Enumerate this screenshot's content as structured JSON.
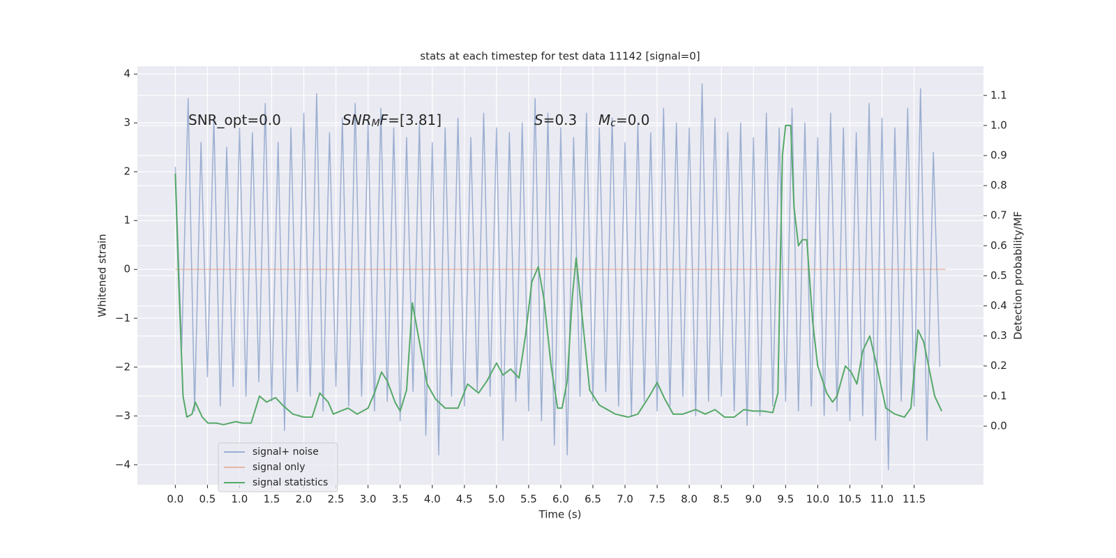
{
  "chart_data": {
    "type": "line",
    "title": "stats at each timestep for test data 11142 [signal=0]",
    "xlabel": "Time (s)",
    "ylabel": "Whitened strain",
    "y2label": "Detection probability/MF",
    "xlim": [
      -0.59,
      12.58
    ],
    "ylim": [
      -4.41,
      4.16
    ],
    "y2lim": [
      -0.195,
      1.197
    ],
    "xticks": [
      {
        "value": 0,
        "label": "0.0"
      },
      0.5,
      {
        "value": 1,
        "label": "1.0"
      },
      1.5,
      {
        "value": 2,
        "label": "2.0"
      },
      2.5,
      {
        "value": 3,
        "label": "3.0"
      },
      3.5,
      {
        "value": 4,
        "label": "4.0"
      },
      4.5,
      {
        "value": 5,
        "label": "5.0"
      },
      5.5,
      {
        "value": 6,
        "label": "6.0"
      },
      6.5,
      {
        "value": 7,
        "label": "7.0"
      },
      7.5,
      {
        "value": 8,
        "label": "8.0"
      },
      8.5,
      {
        "value": 9,
        "label": "9.0"
      },
      9.5,
      {
        "value": 10,
        "label": "10.0"
      },
      10.5,
      {
        "value": 11,
        "label": "11.0"
      },
      11.5
    ],
    "yticks": [
      {
        "value": -4,
        "label": "−4"
      },
      {
        "value": -3,
        "label": "−3"
      },
      {
        "value": -2,
        "label": "−2"
      },
      {
        "value": -1,
        "label": "−1"
      },
      0,
      1,
      2,
      3,
      4
    ],
    "y2ticks": [
      {
        "value": 0,
        "label": "0.0"
      },
      0.1,
      0.2,
      0.3,
      0.4,
      0.5,
      0.6,
      0.7,
      0.8,
      0.9,
      {
        "value": 1,
        "label": "1.0"
      },
      1.1
    ],
    "grid": true,
    "legend": "lower left",
    "series": [
      {
        "name": "signal+ noise",
        "color": "#4c72b0",
        "alpha": 0.5,
        "x": [
          0.0,
          0.1,
          0.2,
          0.3,
          0.4,
          0.5,
          0.6,
          0.7,
          0.8,
          0.9,
          1.0,
          1.1,
          1.2,
          1.3,
          1.4,
          1.5,
          1.6,
          1.7,
          1.8,
          1.9,
          2.0,
          2.1,
          2.2,
          2.3,
          2.4,
          2.5,
          2.6,
          2.7,
          2.8,
          2.9,
          3.0,
          3.1,
          3.2,
          3.3,
          3.4,
          3.5,
          3.6,
          3.7,
          3.8,
          3.9,
          4.0,
          4.1,
          4.2,
          4.3,
          4.4,
          4.5,
          4.6,
          4.7,
          4.8,
          4.9,
          5.0,
          5.1,
          5.2,
          5.3,
          5.4,
          5.5,
          5.6,
          5.7,
          5.8,
          5.9,
          6.0,
          6.1,
          6.2,
          6.3,
          6.4,
          6.5,
          6.6,
          6.7,
          6.8,
          6.9,
          7.0,
          7.1,
          7.2,
          7.3,
          7.4,
          7.5,
          7.6,
          7.7,
          7.8,
          7.9,
          8.0,
          8.1,
          8.2,
          8.3,
          8.4,
          8.5,
          8.6,
          8.7,
          8.8,
          8.9,
          9.0,
          9.1,
          9.2,
          9.3,
          9.4,
          9.5,
          9.6,
          9.7,
          9.8,
          9.9,
          10.0,
          10.1,
          10.2,
          10.3,
          10.4,
          10.5,
          10.6,
          10.7,
          10.8,
          10.9,
          11.0,
          11.1,
          11.2,
          11.3,
          11.4,
          11.5,
          11.6,
          11.7,
          11.8,
          11.9
        ],
        "values": [
          2.1,
          -1.6,
          3.5,
          -2.9,
          2.6,
          -2.2,
          3.1,
          -2.8,
          2.5,
          -2.4,
          2.9,
          -2.6,
          2.8,
          -2.3,
          3.4,
          -2.7,
          2.6,
          -3.3,
          2.9,
          -2.5,
          3.2,
          -2.6,
          3.6,
          -2.9,
          2.8,
          -2.4,
          3.1,
          -2.8,
          3.4,
          -2.6,
          3.0,
          -2.9,
          3.3,
          -2.7,
          2.9,
          -3.1,
          2.7,
          -2.5,
          3.0,
          -3.4,
          2.6,
          -3.8,
          2.9,
          -2.6,
          3.1,
          -2.8,
          2.7,
          -2.5,
          3.2,
          -2.6,
          2.9,
          -3.5,
          2.8,
          -2.7,
          3.0,
          -2.9,
          3.5,
          -3.1,
          3.2,
          -3.6,
          2.9,
          -3.8,
          2.7,
          -2.6,
          3.2,
          -2.7,
          2.9,
          -2.5,
          3.1,
          -2.8,
          2.6,
          -3.0,
          3.0,
          -2.7,
          2.8,
          -2.9,
          3.3,
          -2.8,
          3.0,
          -2.6,
          2.9,
          -3.0,
          3.8,
          -2.7,
          3.1,
          -2.6,
          2.8,
          -2.9,
          3.0,
          -3.2,
          2.7,
          -3.0,
          3.2,
          -2.8,
          2.9,
          -2.7,
          3.3,
          -2.9,
          3.0,
          -2.8,
          2.7,
          -3.0,
          3.2,
          -2.9,
          2.9,
          -3.1,
          2.8,
          -3.0,
          3.4,
          -3.5,
          3.1,
          -4.1,
          2.9,
          -2.7,
          3.3,
          -2.8,
          3.7,
          -3.5,
          2.4,
          -2.0
        ]
      },
      {
        "name": "signal only",
        "color": "#dd8452",
        "alpha": 0.5,
        "x": [
          0.0,
          11.99
        ],
        "values": [
          0,
          0
        ]
      },
      {
        "name": "signal statistics",
        "color": "#55a868",
        "alpha": 1,
        "axis": "y2",
        "x": [
          0.0,
          0.05,
          0.12,
          0.18,
          0.26,
          0.31,
          0.42,
          0.51,
          0.64,
          0.75,
          0.94,
          1.05,
          1.18,
          1.31,
          1.42,
          1.56,
          1.67,
          1.83,
          2.0,
          2.13,
          2.25,
          2.38,
          2.46,
          2.57,
          2.69,
          2.83,
          3.0,
          3.1,
          3.21,
          3.3,
          3.42,
          3.5,
          3.6,
          3.69,
          3.8,
          3.92,
          4.05,
          4.2,
          4.4,
          4.55,
          4.72,
          4.85,
          5.0,
          5.1,
          5.22,
          5.35,
          5.45,
          5.55,
          5.65,
          5.74,
          5.85,
          5.95,
          6.02,
          6.1,
          6.18,
          6.24,
          6.35,
          6.45,
          6.6,
          6.85,
          7.05,
          7.2,
          7.38,
          7.5,
          7.62,
          7.75,
          7.9,
          8.1,
          8.25,
          8.4,
          8.55,
          8.7,
          8.85,
          9.0,
          9.15,
          9.3,
          9.38,
          9.45,
          9.5,
          9.58,
          9.63,
          9.7,
          9.76,
          9.83,
          9.92,
          10.0,
          10.14,
          10.23,
          10.3,
          10.43,
          10.52,
          10.61,
          10.7,
          10.81,
          10.92,
          11.06,
          11.2,
          11.35,
          11.45,
          11.56,
          11.65,
          11.82,
          11.93
        ],
        "values": [
          0.84,
          0.5,
          0.1,
          0.03,
          0.04,
          0.08,
          0.03,
          0.01,
          0.01,
          0.005,
          0.015,
          0.01,
          0.01,
          0.1,
          0.08,
          0.095,
          0.07,
          0.04,
          0.03,
          0.03,
          0.11,
          0.08,
          0.04,
          0.05,
          0.06,
          0.04,
          0.06,
          0.11,
          0.18,
          0.15,
          0.08,
          0.05,
          0.12,
          0.41,
          0.28,
          0.14,
          0.09,
          0.06,
          0.06,
          0.14,
          0.11,
          0.15,
          0.21,
          0.17,
          0.19,
          0.16,
          0.3,
          0.48,
          0.53,
          0.42,
          0.2,
          0.06,
          0.06,
          0.15,
          0.43,
          0.56,
          0.33,
          0.12,
          0.07,
          0.04,
          0.03,
          0.04,
          0.1,
          0.145,
          0.09,
          0.04,
          0.04,
          0.055,
          0.04,
          0.055,
          0.03,
          0.03,
          0.055,
          0.05,
          0.05,
          0.045,
          0.11,
          0.9,
          1.0,
          1.0,
          0.73,
          0.6,
          0.62,
          0.62,
          0.35,
          0.2,
          0.11,
          0.08,
          0.1,
          0.2,
          0.18,
          0.14,
          0.25,
          0.3,
          0.2,
          0.06,
          0.04,
          0.03,
          0.06,
          0.32,
          0.28,
          0.1,
          0.05
        ]
      }
    ],
    "annotations": [
      {
        "parts": [
          {
            "text": "SNR_opt=0.0"
          }
        ]
      },
      {
        "parts": [
          {
            "text": "SNR",
            "italic": true
          },
          {
            "text": "M",
            "italic": true,
            "sub": true
          },
          {
            "text": "F",
            "italic": true
          },
          {
            "text": "=[3.81]"
          }
        ]
      },
      {
        "parts": [
          {
            "text": "S",
            "italic": true
          },
          {
            "text": "=0.3"
          }
        ]
      },
      {
        "parts": [
          {
            "text": "M",
            "italic": true
          },
          {
            "text": "c",
            "italic": true,
            "sub": true
          },
          {
            "text": "=0.0"
          }
        ]
      }
    ]
  }
}
